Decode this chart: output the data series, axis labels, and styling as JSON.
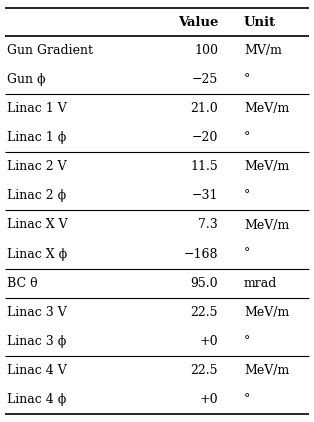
{
  "rows": [
    {
      "param": "Gun Gradient",
      "value": "100",
      "unit": "MV/m"
    },
    {
      "param": "Gun ϕ",
      "value": "−25",
      "unit": "°"
    },
    {
      "param": "Linac 1 V",
      "value": "21.0",
      "unit": "MeV/m"
    },
    {
      "param": "Linac 1 ϕ",
      "value": "−20",
      "unit": "°"
    },
    {
      "param": "Linac 2 V",
      "value": "11.5",
      "unit": "MeV/m"
    },
    {
      "param": "Linac 2 ϕ",
      "value": "−31",
      "unit": "°"
    },
    {
      "param": "Linac X V",
      "value": "7.3",
      "unit": "MeV/m"
    },
    {
      "param": "Linac X ϕ",
      "value": "−168",
      "unit": "°"
    },
    {
      "param": "BC θ",
      "value": "95.0",
      "unit": "mrad"
    },
    {
      "param": "Linac 3 V",
      "value": "22.5",
      "unit": "MeV/m"
    },
    {
      "param": "Linac 3 ϕ",
      "value": "+0",
      "unit": "°"
    },
    {
      "param": "Linac 4 V",
      "value": "22.5",
      "unit": "MeV/m"
    },
    {
      "param": "Linac 4 ϕ",
      "value": "+0",
      "unit": "°"
    }
  ],
  "col_headers": [
    "",
    "Value",
    "Unit"
  ],
  "group_separators_after": [
    1,
    3,
    5,
    7,
    8,
    10
  ],
  "bg_color": "#ffffff",
  "text_color": "#000000",
  "header_fontsize": 9.5,
  "body_fontsize": 9.0
}
